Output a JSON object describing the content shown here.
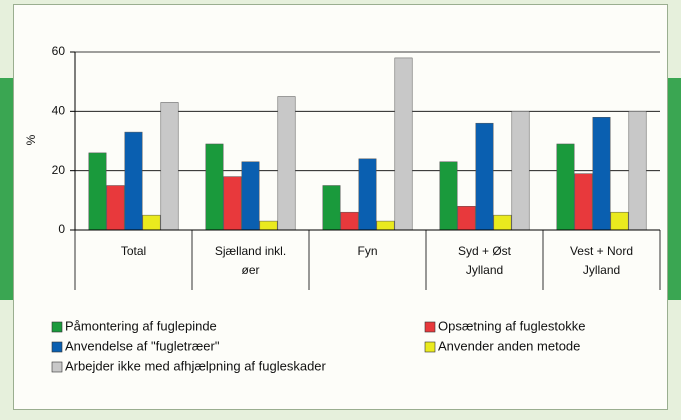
{
  "chart_data": {
    "type": "bar",
    "ylabel": "%",
    "categories": [
      "Total",
      "Sjælland inkl. øer",
      "Fyn",
      "Syd + Øst Jylland",
      "Vest + Nord Jylland"
    ],
    "series": [
      {
        "name": "Påmontering af fuglepinde",
        "color": "#1a9a3c",
        "values": [
          26,
          29,
          15,
          23,
          29
        ]
      },
      {
        "name": "Opsætning af fuglestokke",
        "color": "#e8393c",
        "values": [
          15,
          18,
          6,
          8,
          19
        ]
      },
      {
        "name": "Anvendelse af \"fugletræer\"",
        "color": "#0a5fb0",
        "values": [
          33,
          23,
          24,
          36,
          38
        ]
      },
      {
        "name": "Anvender anden metode",
        "color": "#eaea1e",
        "values": [
          5,
          3,
          3,
          5,
          6
        ]
      },
      {
        "name": "Arbejder ikke med afhjælpning af fugleskader",
        "color": "#c8c8c8",
        "values": [
          43,
          45,
          58,
          40,
          40
        ]
      }
    ],
    "ylim": [
      0,
      60
    ],
    "yticks": [
      0,
      20,
      40,
      60
    ],
    "grid": true
  }
}
